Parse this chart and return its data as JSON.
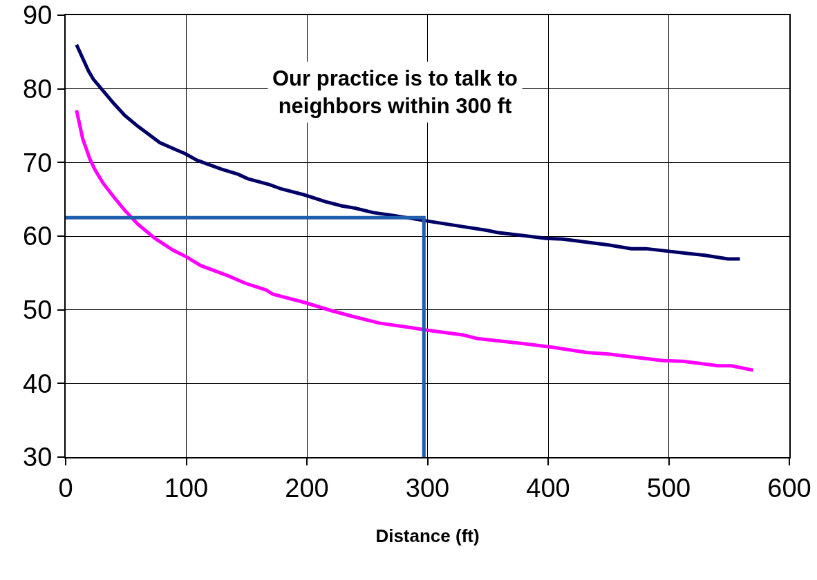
{
  "chart_data": {
    "type": "line",
    "xlabel": "Distance (ft)",
    "annotations": [
      "Our practice is to talk to\nneighbors within 300 ft"
    ],
    "xlim": [
      0,
      600
    ],
    "xticks": [
      0,
      100,
      200,
      300,
      400,
      500,
      600
    ],
    "ylim": [
      30,
      90
    ],
    "yticks": [
      30,
      40,
      50,
      60,
      70,
      80,
      90
    ],
    "grid": true,
    "marker": "none",
    "line_style": "solid",
    "series": [
      {
        "color": "#000066",
        "x": [
          9,
          19,
          23,
          40,
          49,
          60,
          69,
          78,
          89,
          99,
          109,
          129,
          143,
          151,
          169,
          179,
          198,
          215,
          229,
          240,
          255,
          272,
          298,
          329,
          349,
          358,
          398,
          412,
          450,
          469,
          481,
          518,
          530,
          549,
          559
        ],
        "values": [
          86,
          82.4,
          81.3,
          78,
          76.4,
          74.9,
          73.8,
          72.7,
          71.9,
          71.2,
          70.3,
          69.1,
          68.4,
          67.8,
          67,
          66.4,
          65.6,
          64.7,
          64.1,
          63.8,
          63.2,
          62.8,
          62.1,
          61.3,
          60.8,
          60.5,
          59.7,
          59.6,
          58.8,
          58.3,
          58.3,
          57.6,
          57.4,
          56.9,
          56.9
        ]
      },
      {
        "color": "#ff00ff",
        "x": [
          9,
          14,
          20,
          24,
          31,
          40,
          49,
          60,
          74,
          89,
          100,
          112,
          135,
          149,
          166,
          172,
          198,
          220,
          238,
          260,
          289,
          301,
          329,
          341,
          375,
          404,
          432,
          450,
          495,
          512,
          541,
          552,
          570
        ],
        "values": [
          77.1,
          73.3,
          70.5,
          69.1,
          67.2,
          65.3,
          63.5,
          61.6,
          59.7,
          58.1,
          57.2,
          56,
          54.6,
          53.6,
          52.7,
          52.1,
          51,
          49.9,
          49.1,
          48.2,
          47.5,
          47.2,
          46.6,
          46.1,
          45.5,
          44.9,
          44.2,
          44,
          43.1,
          43,
          42.4,
          42.4,
          41.8
        ]
      },
      {
        "color": "#1f5fad",
        "x": [
          0,
          297,
          297
        ],
        "values": [
          62.5,
          62.5,
          30
        ]
      }
    ]
  }
}
